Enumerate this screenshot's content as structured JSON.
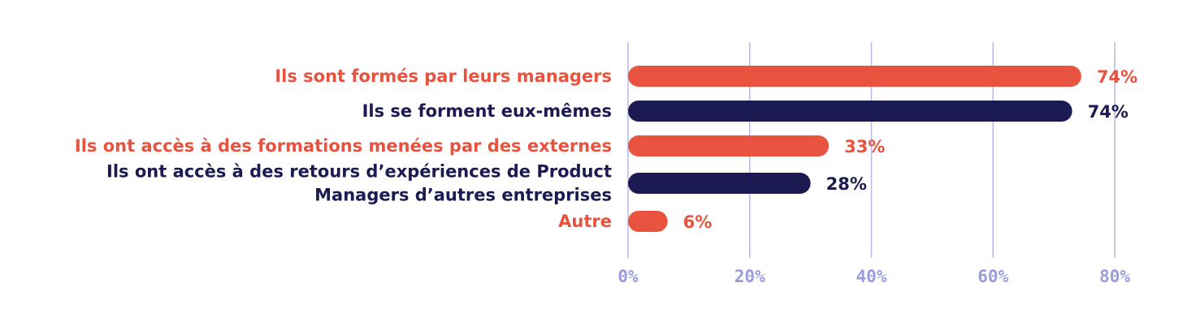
{
  "chart_data": {
    "type": "bar",
    "orientation": "horizontal",
    "title": "",
    "xlabel": "",
    "ylabel": "",
    "categories": [
      "Ils sont formés par leurs managers",
      "Ils se forment eux-mêmes",
      "Ils ont accès à des formations menées par des externes",
      "Ils ont accès à des retours d’expériences de Product Managers d’autres entreprises",
      "Autre"
    ],
    "category_lines": [
      [
        "Ils sont formés par leurs managers"
      ],
      [
        "Ils se forment eux-mêmes"
      ],
      [
        "Ils ont accès à des formations menées par des externes"
      ],
      [
        "Ils ont accès à des retours d’expériences de Product",
        "Managers d’autres entreprises"
      ],
      [
        "Autre"
      ]
    ],
    "values": [
      74,
      74,
      33,
      28,
      6
    ],
    "bar_lengths": [
      74.5,
      73,
      33,
      30,
      6.5
    ],
    "value_labels": [
      "74%",
      "74%",
      "33%",
      "28%",
      "6%"
    ],
    "xlim": [
      0,
      80
    ],
    "xticks": [
      0,
      20,
      40,
      60,
      80
    ],
    "xtick_labels": [
      "0%",
      "20%",
      "40%",
      "60%",
      "80%"
    ],
    "grid": "vertical",
    "legend": "none",
    "colors": {
      "orange": "#e8533f",
      "navy": "#1c1a52",
      "grid": "#b7b9e6",
      "tick": "#9a9cdc"
    },
    "bar_colors": [
      "orange",
      "navy",
      "orange",
      "navy",
      "orange"
    ]
  }
}
